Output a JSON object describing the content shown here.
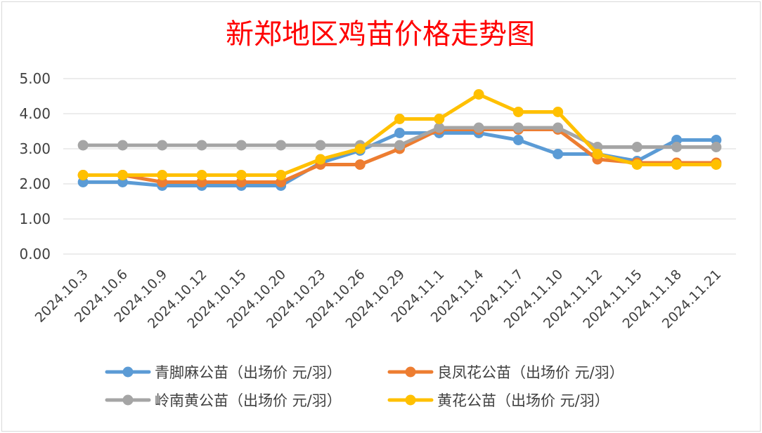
{
  "chart_data": {
    "type": "line",
    "title": "新郑地区鸡苗价格走势图",
    "xlabel": "",
    "ylabel": "",
    "ylim": [
      0,
      5
    ],
    "yticks": [
      "0.00",
      "1.00",
      "2.00",
      "3.00",
      "4.00",
      "5.00"
    ],
    "grid": true,
    "legend_position": "bottom",
    "categories": [
      "2024.10.3",
      "2024.10.6",
      "2024.10.9",
      "2024.10.12",
      "2024.10.15",
      "2024.10.20",
      "2024.10.23",
      "2024.10.26",
      "2024.10.29",
      "2024.11.1",
      "2024.11.4",
      "2024.11.7",
      "2024.11.10",
      "2024.11.12",
      "2024.11.15",
      "2024.11.18",
      "2024.11.21"
    ],
    "series": [
      {
        "name": "青脚麻公苗（出场价 元/羽）",
        "color": "#5b9bd5",
        "values": [
          2.05,
          2.05,
          1.95,
          1.95,
          1.95,
          1.95,
          2.6,
          2.95,
          3.45,
          3.45,
          3.45,
          3.25,
          2.85,
          2.85,
          2.65,
          3.25,
          3.25
        ]
      },
      {
        "name": "良凤花公苗（出场价 元/羽）",
        "color": "#ed7d31",
        "values": [
          2.25,
          2.25,
          2.05,
          2.05,
          2.05,
          2.05,
          2.55,
          2.55,
          3.0,
          3.55,
          3.55,
          3.55,
          3.55,
          2.7,
          2.6,
          2.6,
          2.6
        ]
      },
      {
        "name": "岭南黄公苗（出场价 元/羽）",
        "color": "#a5a5a5",
        "values": [
          3.1,
          3.1,
          3.1,
          3.1,
          3.1,
          3.1,
          3.1,
          3.1,
          3.1,
          3.6,
          3.6,
          3.6,
          3.6,
          3.05,
          3.05,
          3.05,
          3.05
        ]
      },
      {
        "name": "黄花公苗（出场价 元/羽）",
        "color": "#ffc000",
        "values": [
          2.25,
          2.25,
          2.25,
          2.25,
          2.25,
          2.25,
          2.7,
          3.0,
          3.85,
          3.85,
          4.55,
          4.05,
          4.05,
          2.85,
          2.55,
          2.55,
          2.55
        ]
      }
    ]
  }
}
